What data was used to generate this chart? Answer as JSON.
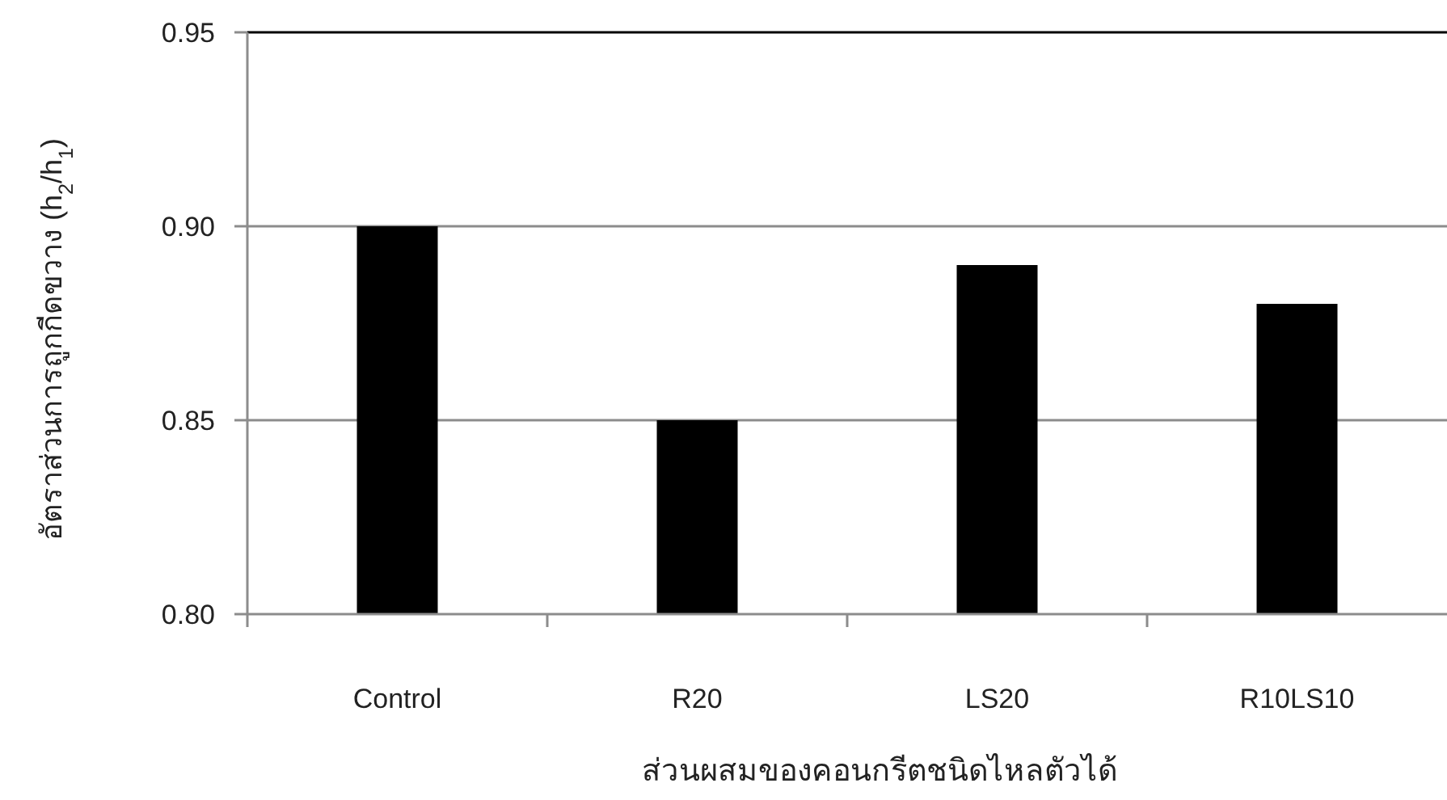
{
  "chart_data": {
    "type": "bar",
    "xlabel": "ส่วนผสมของคอนกรีตชนิดไหลตัวได้",
    "ylabel": "อัตราส่วนการถูกกีดขวาง  (h$_{2}$/h$_{1}$)",
    "categories": [
      "Control",
      "R20",
      "LS20",
      "R10LS10"
    ],
    "values": [
      0.9,
      0.85,
      0.89,
      0.88
    ],
    "color": "#000000",
    "ylim": [
      0.8,
      0.95
    ],
    "yticks": [
      {
        "value": 0.8,
        "label": "0.80"
      },
      0.85,
      {
        "value": 0.9,
        "label": "0.90"
      },
      0.95
    ],
    "grid": "y"
  }
}
